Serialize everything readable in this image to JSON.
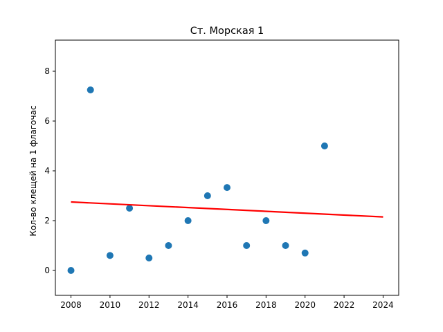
{
  "chart_data": {
    "type": "scatter",
    "title": "Ст. Морская 1",
    "xlabel": "",
    "ylabel": "Кол-во клещей на 1 флагочас",
    "xlim": [
      2007.2,
      2024.8
    ],
    "ylim": [
      -1.0,
      9.25
    ],
    "x_ticks": [
      2008,
      2010,
      2012,
      2014,
      2016,
      2018,
      2020,
      2022,
      2024
    ],
    "y_ticks": [
      0,
      2,
      4,
      6,
      8
    ],
    "grid": false,
    "series": [
      {
        "type": "scatter",
        "color": "#1f77b4",
        "points": [
          {
            "x": 2008,
            "y": 0.0
          },
          {
            "x": 2009,
            "y": 7.25
          },
          {
            "x": 2010,
            "y": 0.6
          },
          {
            "x": 2011,
            "y": 2.5
          },
          {
            "x": 2012,
            "y": 0.5
          },
          {
            "x": 2013,
            "y": 1.0
          },
          {
            "x": 2014,
            "y": 2.0
          },
          {
            "x": 2015,
            "y": 3.0
          },
          {
            "x": 2016,
            "y": 3.33
          },
          {
            "x": 2017,
            "y": 1.0
          },
          {
            "x": 2018,
            "y": 2.0
          },
          {
            "x": 2019,
            "y": 1.0
          },
          {
            "x": 2020,
            "y": 0.7
          },
          {
            "x": 2021,
            "y": 5.0
          }
        ]
      },
      {
        "type": "line",
        "color": "#ff0000",
        "points": [
          {
            "x": 2008,
            "y": 2.75
          },
          {
            "x": 2024,
            "y": 2.15
          }
        ]
      }
    ]
  }
}
